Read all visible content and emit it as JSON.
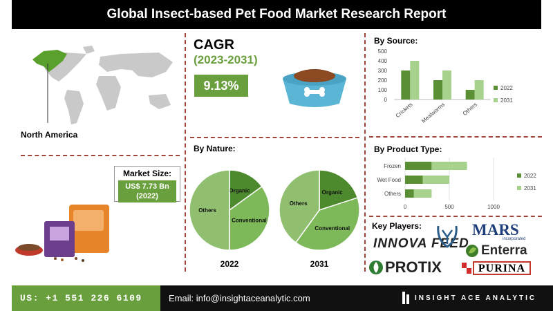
{
  "title": "Global Insect-based Pet Food Market Research Report",
  "region": {
    "label": "North America"
  },
  "market_size": {
    "heading": "Market Size:",
    "value": "US$ 7.73 Bn",
    "year": "(2022)"
  },
  "cagr": {
    "label": "CAGR",
    "period": "(2023-2031)",
    "value": "9.13%"
  },
  "nature": {
    "heading": "By Nature:"
  },
  "source": {
    "heading": "By Source:"
  },
  "product": {
    "heading": "By Product Type:"
  },
  "key_players": {
    "heading": "Key Players:",
    "logos": [
      "INNOVA FEED",
      "MARS",
      "Enterra",
      "PROTIX",
      "PURINA"
    ],
    "mars_tag": "incorporated",
    "innova_sub": "FEED"
  },
  "footer": {
    "phone": "US: +1 551 226 6109",
    "email": "Email: info@insightaceanalytic.com",
    "brand": "INSIGHT ACE ANALYTIC"
  },
  "colors": {
    "green": "#6a9f3e",
    "dark_green": "#5a8f35",
    "light_green": "#a7d28d",
    "mid_green": "#7db859"
  },
  "chart_data": [
    {
      "type": "bar",
      "title": "By Source:",
      "categories": [
        "Crickets",
        "Mealworms",
        "Others"
      ],
      "series": [
        {
          "name": "2022",
          "values": [
            300,
            200,
            100
          ]
        },
        {
          "name": "2031",
          "values": [
            400,
            300,
            200
          ]
        }
      ],
      "ylim": [
        0,
        500
      ],
      "yticks": [
        0,
        100,
        200,
        300,
        400,
        500
      ],
      "legend": "right",
      "grid": false
    },
    {
      "type": "bar",
      "orientation": "horizontal",
      "title": "By Product Type:",
      "categories": [
        "Frozen",
        "Wet Food",
        "Others"
      ],
      "series": [
        {
          "name": "2022",
          "values": [
            300,
            200,
            100
          ]
        },
        {
          "name": "2031",
          "values": [
            400,
            300,
            200
          ]
        }
      ],
      "xlim": [
        0,
        1000
      ],
      "xticks": [
        0,
        500,
        1000
      ],
      "legend": "right",
      "grid": true
    },
    {
      "type": "pie",
      "title": "2022",
      "labels": [
        "Organic",
        "Conventional",
        "Others"
      ],
      "values": [
        15,
        35,
        50
      ]
    },
    {
      "type": "pie",
      "title": "2031",
      "labels": [
        "Organic",
        "Conventional",
        "Others"
      ],
      "values": [
        20,
        40,
        40
      ]
    }
  ]
}
